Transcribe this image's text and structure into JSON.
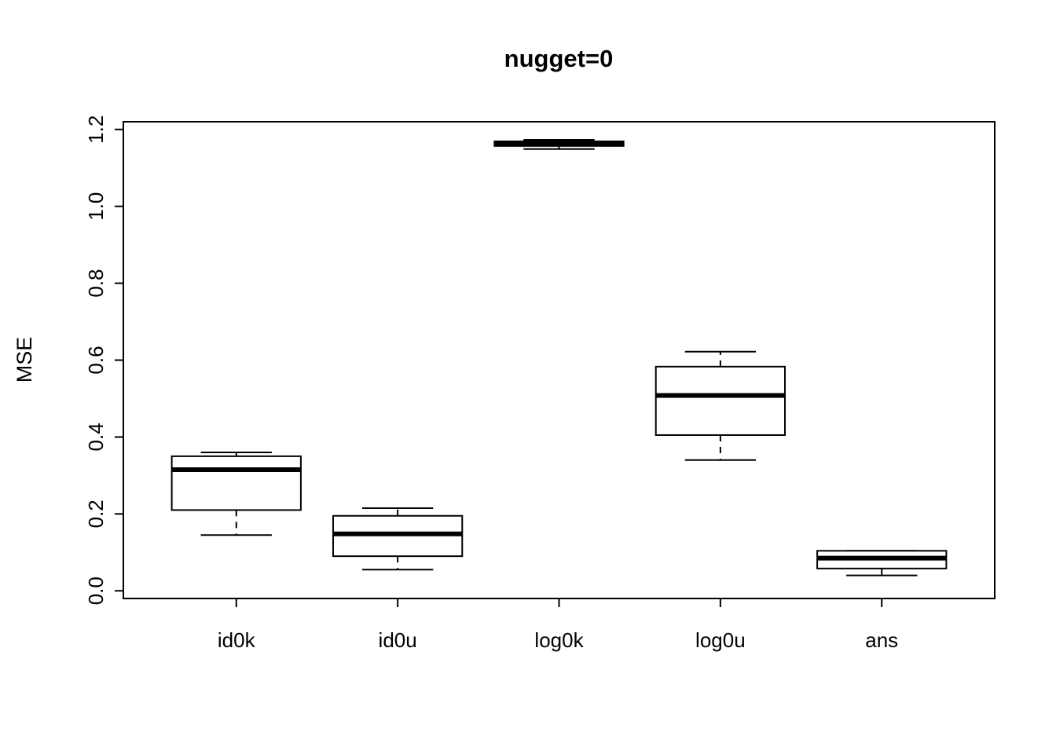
{
  "title": "nugget=0",
  "chart_data": {
    "type": "boxplot",
    "title": "nugget=0",
    "xlabel": "",
    "ylabel": "MSE",
    "ylim": [
      0.0,
      1.2
    ],
    "yticks": [
      0.0,
      0.2,
      0.4,
      0.6,
      0.8,
      1.0,
      1.2
    ],
    "ytick_labels": [
      "0.0",
      "0.2",
      "0.4",
      "0.6",
      "0.8",
      "1.0",
      "1.2"
    ],
    "grid": false,
    "legend": "none",
    "categories": [
      "id0k",
      "id0u",
      "log0k",
      "log0u",
      "ans"
    ],
    "series": [
      {
        "name": "id0k",
        "whisker_low": 0.145,
        "q1": 0.21,
        "median": 0.315,
        "q3": 0.35,
        "whisker_high": 0.36
      },
      {
        "name": "id0u",
        "whisker_low": 0.055,
        "q1": 0.09,
        "median": 0.148,
        "q3": 0.195,
        "whisker_high": 0.215
      },
      {
        "name": "log0k",
        "whisker_low": 1.149,
        "q1": 1.157,
        "median": 1.164,
        "q3": 1.169,
        "whisker_high": 1.173
      },
      {
        "name": "log0u",
        "whisker_low": 0.34,
        "q1": 0.405,
        "median": 0.508,
        "q3": 0.583,
        "whisker_high": 0.622
      },
      {
        "name": "ans",
        "whisker_low": 0.04,
        "q1": 0.058,
        "median": 0.085,
        "q3": 0.104,
        "whisker_high": 0.104
      }
    ],
    "colors": {
      "box_fill": "#ffffff",
      "line": "#000000",
      "background": "#ffffff"
    }
  }
}
